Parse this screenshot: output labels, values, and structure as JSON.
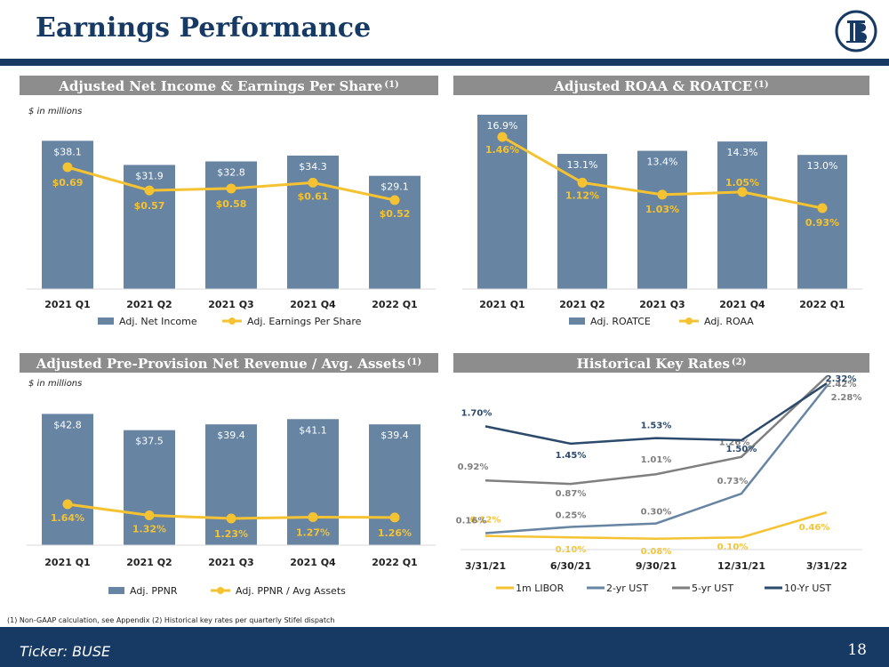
{
  "page": {
    "title": "Earnings Performance",
    "footnote": "(1) Non-GAAP calculation, see Appendix  (2) Historical key rates per quarterly Stifel dispatch",
    "ticker": "Ticker:  BUSE",
    "page_number": "18"
  },
  "colors": {
    "navy": "#173a64",
    "bar": "#6785a3",
    "line": "#f5c332",
    "header_gray": "#8d8d8d",
    "libor": "#f5c332",
    "ust2": "#6785a3",
    "ust5": "#7f7f7f",
    "ust10": "#2c4a6b"
  },
  "chart_data": [
    {
      "type": "bar",
      "id": "c1",
      "title": "Adjusted Net Income & Earnings Per Share",
      "title_note": "(1)",
      "unit_label": "$ in millions",
      "categories": [
        "2021 Q1",
        "2021 Q2",
        "2021 Q3",
        "2021 Q4",
        "2022 Q1"
      ],
      "series": [
        {
          "name": "Adj. Net Income",
          "kind": "bar",
          "values": [
            38.1,
            31.9,
            32.8,
            34.3,
            29.1
          ],
          "labels": [
            "$38.1",
            "$31.9",
            "$32.8",
            "$34.3",
            "$29.1"
          ]
        },
        {
          "name": "Adj. Earnings Per Share",
          "kind": "line",
          "values": [
            0.69,
            0.57,
            0.58,
            0.61,
            0.52
          ],
          "labels": [
            "$0.69",
            "$0.57",
            "$0.58",
            "$0.61",
            "$0.52"
          ]
        }
      ]
    },
    {
      "type": "bar",
      "id": "c2",
      "title": "Adjusted ROAA & ROATCE",
      "title_note": "(1)",
      "unit_label": "",
      "categories": [
        "2021 Q1",
        "2021 Q2",
        "2021 Q3",
        "2021 Q4",
        "2022 Q1"
      ],
      "series": [
        {
          "name": "Adj. ROATCE",
          "kind": "bar",
          "values": [
            16.9,
            13.1,
            13.4,
            14.3,
            13.0
          ],
          "labels": [
            "16.9%",
            "13.1%",
            "13.4%",
            "14.3%",
            "13.0%"
          ]
        },
        {
          "name": "Adj. ROAA",
          "kind": "line",
          "values": [
            1.46,
            1.12,
            1.03,
            1.05,
            0.93
          ],
          "labels": [
            "1.46%",
            "1.12%",
            "1.03%",
            "1.05%",
            "0.93%"
          ]
        }
      ]
    },
    {
      "type": "bar",
      "id": "c3",
      "title": "Adjusted Pre-Provision Net Revenue / Avg. Assets",
      "title_note": "(1)",
      "unit_label": "$ in millions",
      "categories": [
        "2021 Q1",
        "2021 Q2",
        "2021 Q3",
        "2021 Q4",
        "2022 Q1"
      ],
      "series": [
        {
          "name": "Adj. PPNR",
          "kind": "bar",
          "values": [
            42.8,
            37.5,
            39.4,
            41.1,
            39.4
          ],
          "labels": [
            "$42.8",
            "$37.5",
            "$39.4",
            "$41.1",
            "$39.4"
          ]
        },
        {
          "name": "Adj. PPNR / Avg Assets",
          "kind": "line",
          "values": [
            1.64,
            1.32,
            1.23,
            1.27,
            1.26
          ],
          "labels": [
            "1.64%",
            "1.32%",
            "1.23%",
            "1.27%",
            "1.26%"
          ]
        }
      ]
    },
    {
      "type": "line",
      "id": "c4",
      "title": "Historical Key Rates",
      "title_note": "(2)",
      "categories": [
        "3/31/21",
        "6/30/21",
        "9/30/21",
        "12/31/21",
        "3/31/22"
      ],
      "ylim": [
        0,
        2.5
      ],
      "series": [
        {
          "name": "1m LIBOR",
          "values": [
            0.12,
            0.1,
            0.08,
            0.1,
            0.46
          ],
          "labels": [
            "0.12%",
            "0.10%",
            "0.08%",
            "0.10%",
            "0.46%"
          ]
        },
        {
          "name": "2-yr UST",
          "values": [
            0.16,
            0.25,
            0.3,
            0.73,
            2.28
          ],
          "labels": [
            "0.16%",
            "0.25%",
            "0.30%",
            "0.73%",
            "2.28%"
          ]
        },
        {
          "name": "5-yr UST",
          "values": [
            0.92,
            0.87,
            1.01,
            1.26,
            2.42
          ],
          "labels": [
            "0.92%",
            "0.87%",
            "1.01%",
            "1.26%",
            "2.42%"
          ]
        },
        {
          "name": "10-Yr UST",
          "values": [
            1.7,
            1.45,
            1.53,
            1.5,
            2.32
          ],
          "labels": [
            "1.70%",
            "1.45%",
            "1.53%",
            "1.50%",
            "2.32%"
          ]
        }
      ]
    }
  ]
}
